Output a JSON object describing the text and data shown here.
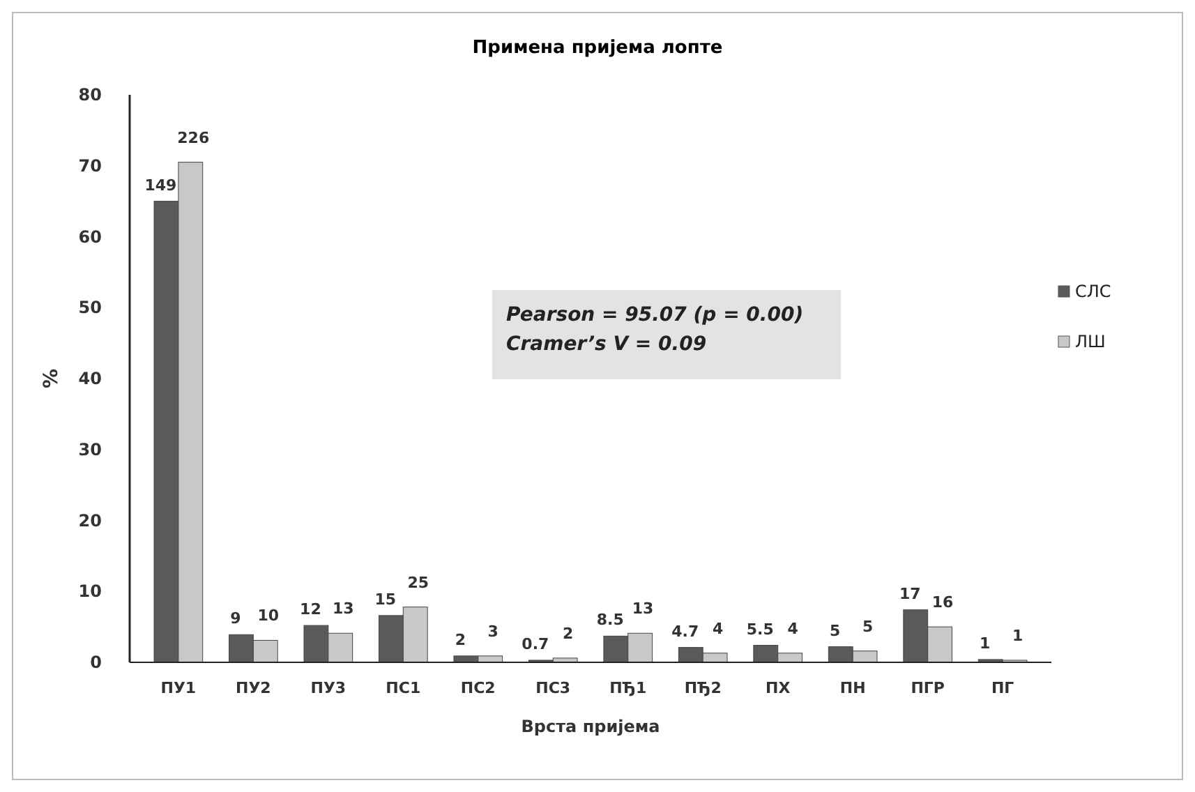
{
  "chart_data": {
    "type": "bar",
    "title": "Примена пријема лопте",
    "xlabel": "Врста пријема",
    "ylabel": "%",
    "categories": [
      "ПУ1",
      "ПУ2",
      "ПУ3",
      "ПС1",
      "ПС2",
      "ПС3",
      "ПЂ1",
      "ПЂ2",
      "ПХ",
      "ПН",
      "ПГР",
      "ПГ"
    ],
    "series": [
      {
        "name": "СЛС",
        "color": "#5a5a5a",
        "values": [
          65,
          3.9,
          5.2,
          6.6,
          0.9,
          0.3,
          3.7,
          2.1,
          2.4,
          2.2,
          7.4,
          0.4
        ]
      },
      {
        "name": "ЛШ",
        "color": "#c8c8c8",
        "values": [
          70.5,
          3.1,
          4.1,
          7.8,
          0.9,
          0.6,
          4.1,
          1.3,
          1.3,
          1.6,
          5,
          0.3
        ]
      }
    ],
    "ylim": [
      0,
      80
    ],
    "yticks": [
      0,
      10,
      20,
      30,
      40,
      50,
      60,
      70,
      80
    ],
    "grid": false,
    "legend": "right",
    "annotations": [
      "Pearson = 95.07 (p = 0.00)",
      "Cramer’s V = 0.09",
      {
        "text": "149",
        "x": "ПУ1",
        "y": 65
      },
      {
        "text": "9",
        "x": "ПУ2",
        "y": 3.9
      },
      {
        "text": "12",
        "x": "ПУ3",
        "y": 5.2
      },
      {
        "text": "15",
        "x": "ПС1",
        "y": 6.6
      },
      {
        "text": "2",
        "x": "ПС2",
        "y": 0.9
      },
      {
        "text": "0.7",
        "x": "ПС3",
        "y": 0.3
      },
      {
        "text": "8.5",
        "x": "ПЂ1",
        "y": 3.7
      },
      {
        "text": "4.7",
        "x": "ПЂ2",
        "y": 2.1
      },
      {
        "text": "5.5",
        "x": "ПХ",
        "y": 2.4
      },
      {
        "text": "5",
        "x": "ПН",
        "y": 2.2
      },
      {
        "text": "17",
        "x": "ПГР",
        "y": 7.4
      },
      {
        "text": "1",
        "x": "ПГ",
        "y": 0.4
      },
      {
        "text": "226",
        "x": "ПУ1",
        "y": 70.5
      },
      {
        "text": "10",
        "x": "ПУ2",
        "y": 3.1
      },
      {
        "text": "13",
        "x": "ПУ3",
        "y": 4.1
      },
      {
        "text": "25",
        "x": "ПС1",
        "y": 7.8
      },
      {
        "text": "3",
        "x": "ПС2",
        "y": 0.9
      },
      {
        "text": "2",
        "x": "ПС3",
        "y": 0.6
      },
      {
        "text": "13",
        "x": "ПЂ1",
        "y": 4.1
      },
      {
        "text": "4",
        "x": "ПЂ2",
        "y": 1.3
      },
      {
        "text": "4",
        "x": "ПХ",
        "y": 1.3
      },
      {
        "text": "5",
        "x": "ПН",
        "y": 1.6
      },
      {
        "text": "16",
        "x": "ПГР",
        "y": 5
      },
      {
        "text": "1",
        "x": "ПГ",
        "y": 0.3
      }
    ]
  }
}
